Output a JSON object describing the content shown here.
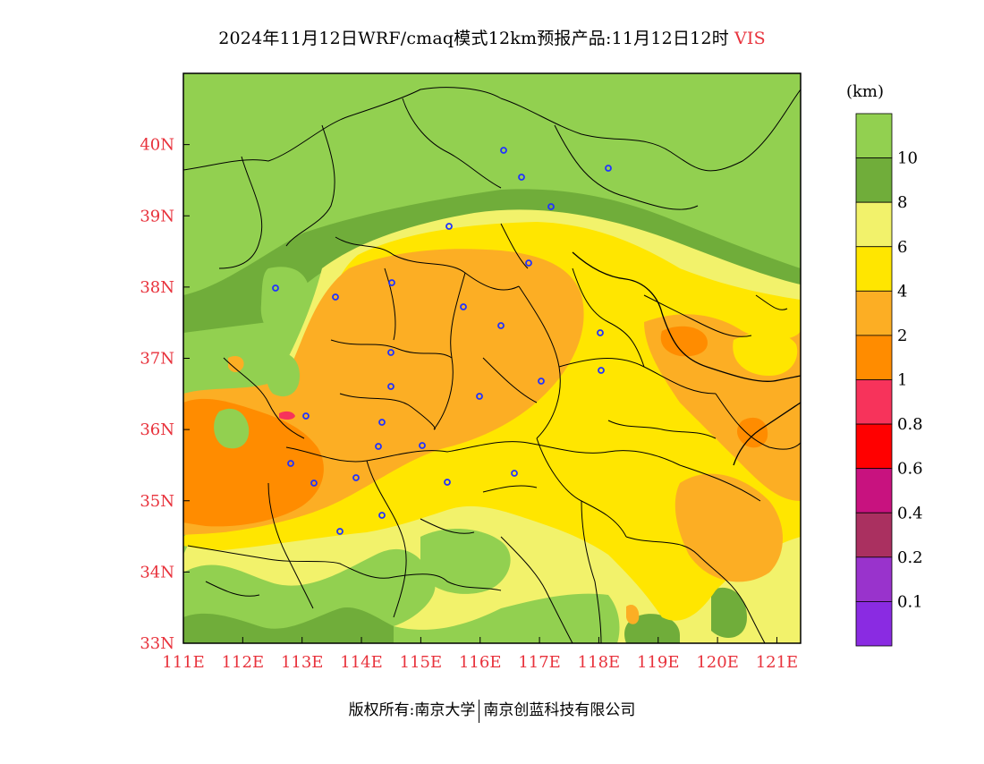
{
  "header": {
    "title": "2024年11月12日WRF/cmaq模式12km预报产品:11月12日12时",
    "variable": "VIS"
  },
  "map": {
    "lon_range": [
      111,
      121.4
    ],
    "lat_range": [
      33,
      41
    ],
    "lon_ticks": [
      "111E",
      "112E",
      "113E",
      "114E",
      "115E",
      "116E",
      "117E",
      "118E",
      "119E",
      "120E",
      "121E"
    ],
    "lat_ticks": [
      "33N",
      "34N",
      "35N",
      "36N",
      "37N",
      "38N",
      "39N",
      "40N"
    ],
    "tick_color": "#e8323c"
  },
  "legend": {
    "unit": "(km)",
    "labels": [
      "10",
      "8",
      "6",
      "4",
      "2",
      "1",
      "0.8",
      "0.6",
      "0.4",
      "0.2",
      "0.1"
    ],
    "colors": [
      "#92d050",
      "#70ad3a",
      "#f2f26b",
      "#ffe600",
      "#fcae24",
      "#ff8c00",
      "#f7335b",
      "#ff0000",
      "#c8127f",
      "#aa3060",
      "#9933cc",
      "#8a2be2"
    ]
  },
  "footer": {
    "copyright_label": "版权所有:",
    "org1": "南京大学",
    "org2": "南京创蓝科技有限公司"
  }
}
